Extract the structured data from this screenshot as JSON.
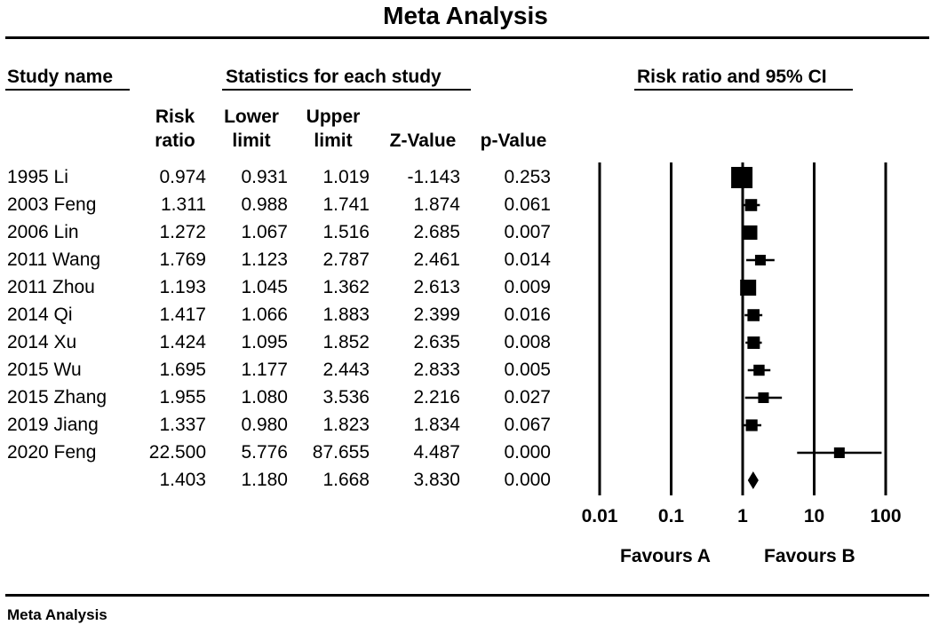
{
  "title": "Meta Analysis",
  "footer": "Meta Analysis",
  "headers": {
    "study_name": "Study name",
    "statistics": "Statistics for each study",
    "risk_ratio_ci": "Risk ratio and 95% CI"
  },
  "columns": {
    "rr_1": "Risk",
    "rr_2": "ratio",
    "lower_1": "Lower",
    "lower_2": "limit",
    "upper_1": "Upper",
    "upper_2": "limit",
    "z": "Z-Value",
    "p": "p-Value"
  },
  "rows": [
    {
      "study": "1995 Li",
      "rr": "0.974",
      "lower": "0.931",
      "upper": "1.019",
      "z": "-1.143",
      "p": "0.253"
    },
    {
      "study": "2003 Feng",
      "rr": "1.311",
      "lower": "0.988",
      "upper": "1.741",
      "z": "1.874",
      "p": "0.061"
    },
    {
      "study": "2006 Lin",
      "rr": "1.272",
      "lower": "1.067",
      "upper": "1.516",
      "z": "2.685",
      "p": "0.007"
    },
    {
      "study": "2011 Wang",
      "rr": "1.769",
      "lower": "1.123",
      "upper": "2.787",
      "z": "2.461",
      "p": "0.014"
    },
    {
      "study": "2011 Zhou",
      "rr": "1.193",
      "lower": "1.045",
      "upper": "1.362",
      "z": "2.613",
      "p": "0.009"
    },
    {
      "study": "2014 Qi",
      "rr": "1.417",
      "lower": "1.066",
      "upper": "1.883",
      "z": "2.399",
      "p": "0.016"
    },
    {
      "study": "2014 Xu",
      "rr": "1.424",
      "lower": "1.095",
      "upper": "1.852",
      "z": "2.635",
      "p": "0.008"
    },
    {
      "study": "2015 Wu",
      "rr": "1.695",
      "lower": "1.177",
      "upper": "2.443",
      "z": "2.833",
      "p": "0.005"
    },
    {
      "study": "2015 Zhang",
      "rr": "1.955",
      "lower": "1.080",
      "upper": "3.536",
      "z": "2.216",
      "p": "0.027"
    },
    {
      "study": "2019 Jiang",
      "rr": "1.337",
      "lower": "0.980",
      "upper": "1.823",
      "z": "1.834",
      "p": "0.067"
    },
    {
      "study": "2020 Feng",
      "rr": "22.500",
      "lower": "5.776",
      "upper": "87.655",
      "z": "4.487",
      "p": "0.000"
    }
  ],
  "summary": {
    "study": "",
    "rr": "1.403",
    "lower": "1.180",
    "upper": "1.668",
    "z": "3.830",
    "p": "0.000"
  },
  "favours": {
    "left": "Favours A",
    "right": "Favours B"
  },
  "chart_data": {
    "type": "scatter",
    "scale": "log",
    "xlim": [
      0.01,
      100
    ],
    "x_ticks": [
      "0.01",
      "0.1",
      "1",
      "10",
      "100"
    ],
    "series": [
      {
        "points": [
          {
            "study": "1995 Li",
            "rr": 0.974,
            "lower": 0.931,
            "upper": 1.019
          },
          {
            "study": "2003 Feng",
            "rr": 1.311,
            "lower": 0.988,
            "upper": 1.741
          },
          {
            "study": "2006 Lin",
            "rr": 1.272,
            "lower": 1.067,
            "upper": 1.516
          },
          {
            "study": "2011 Wang",
            "rr": 1.769,
            "lower": 1.123,
            "upper": 2.787
          },
          {
            "study": "2011 Zhou",
            "rr": 1.193,
            "lower": 1.045,
            "upper": 1.362
          },
          {
            "study": "2014 Qi",
            "rr": 1.417,
            "lower": 1.066,
            "upper": 1.883
          },
          {
            "study": "2014 Xu",
            "rr": 1.424,
            "lower": 1.095,
            "upper": 1.852
          },
          {
            "study": "2015 Wu",
            "rr": 1.695,
            "lower": 1.177,
            "upper": 2.443
          },
          {
            "study": "2015 Zhang",
            "rr": 1.955,
            "lower": 1.08,
            "upper": 3.536
          },
          {
            "study": "2019 Jiang",
            "rr": 1.337,
            "lower": 0.98,
            "upper": 1.823
          },
          {
            "study": "2020 Feng",
            "rr": 22.5,
            "lower": 5.776,
            "upper": 87.655
          }
        ]
      }
    ],
    "summary": {
      "rr": 1.403,
      "lower": 1.18,
      "upper": 1.668
    },
    "marker_color": "#000000"
  }
}
